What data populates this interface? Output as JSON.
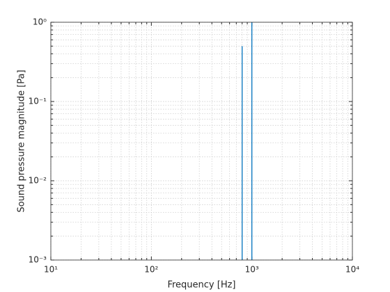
{
  "chart_data": {
    "type": "stem",
    "xlabel": "Frequency [Hz]",
    "ylabel": "Sound pressure magnitude [Pa]",
    "x": [
      800,
      1000
    ],
    "series": [
      {
        "color": "#0072bd",
        "values": [
          0.5,
          1
        ]
      }
    ],
    "xscale": "log",
    "yscale": "log",
    "xlim": [
      10,
      10000
    ],
    "ylim": [
      0.001,
      1
    ],
    "xticks": [
      {
        "value": 10,
        "label": "10¹"
      },
      {
        "value": 100,
        "label": "10²"
      },
      {
        "value": 1000,
        "label": "10³"
      },
      {
        "value": 10000,
        "label": "10⁴"
      }
    ],
    "yticks": [
      {
        "value": 0.001,
        "label": "10⁻³"
      },
      {
        "value": 0.01,
        "label": "10⁻²"
      },
      {
        "value": 0.1,
        "label": "10⁻¹"
      },
      {
        "value": 1,
        "label": "10⁰"
      }
    ],
    "grid": true,
    "minor_grid": true
  }
}
